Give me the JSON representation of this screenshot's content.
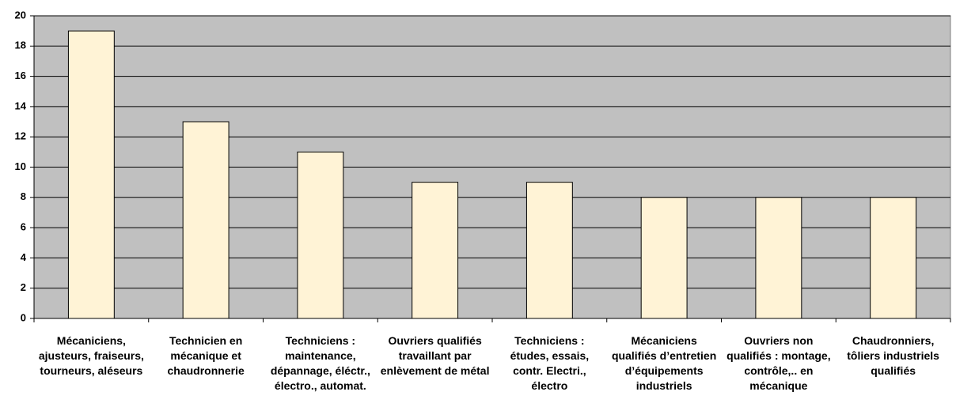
{
  "chart_data": {
    "type": "bar",
    "categories": [
      "Mécaniciens, ajusteurs, fraiseurs, tourneurs, aléseurs",
      "Technicien en mécanique et chaudronnerie",
      "Techniciens : maintenance, dépannage, éléctr., électro., automat.",
      "Ouvriers qualifiés travaillant par enlèvement de métal",
      "Techniciens : études, essais, contr. Electri., électro",
      "Mécaniciens qualifiés d’entretien d’équipements industriels",
      "Ouvriers non qualifiés : montage, contrôle,.. en mécanique",
      "Chaudronniers, tôliers industriels qualifiés"
    ],
    "values": [
      19,
      13,
      11,
      9,
      9,
      8,
      8,
      8
    ],
    "color": "#fff3d6",
    "ylim": [
      0,
      20
    ],
    "yticks": [
      0,
      2,
      4,
      6,
      8,
      10,
      12,
      14,
      16,
      18,
      20
    ],
    "grid": true
  }
}
